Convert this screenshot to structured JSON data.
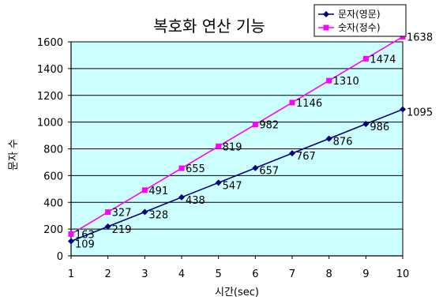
{
  "chart_data": {
    "type": "line",
    "title": "복호화 연산 기능",
    "xlabel": "시간(sec)",
    "ylabel": "문자 수",
    "x": [
      1,
      2,
      3,
      4,
      5,
      6,
      7,
      8,
      9,
      10
    ],
    "xlim": [
      1,
      10
    ],
    "ylim": [
      0,
      1600
    ],
    "yticks": [
      0,
      200,
      400,
      600,
      800,
      1000,
      1200,
      1400,
      1600
    ],
    "grid": true,
    "legend_position": "top-right",
    "plot_background": "#ccffff",
    "series": [
      {
        "name": "문자(영문)",
        "color": "#000080",
        "marker": "diamond",
        "values": [
          109,
          219,
          328,
          438,
          547,
          657,
          767,
          876,
          986,
          1095
        ]
      },
      {
        "name": "숫자(정수)",
        "color": "#ff00ff",
        "marker": "square",
        "values": [
          163,
          327,
          491,
          655,
          819,
          982,
          1146,
          1310,
          1474,
          1638
        ]
      }
    ]
  }
}
